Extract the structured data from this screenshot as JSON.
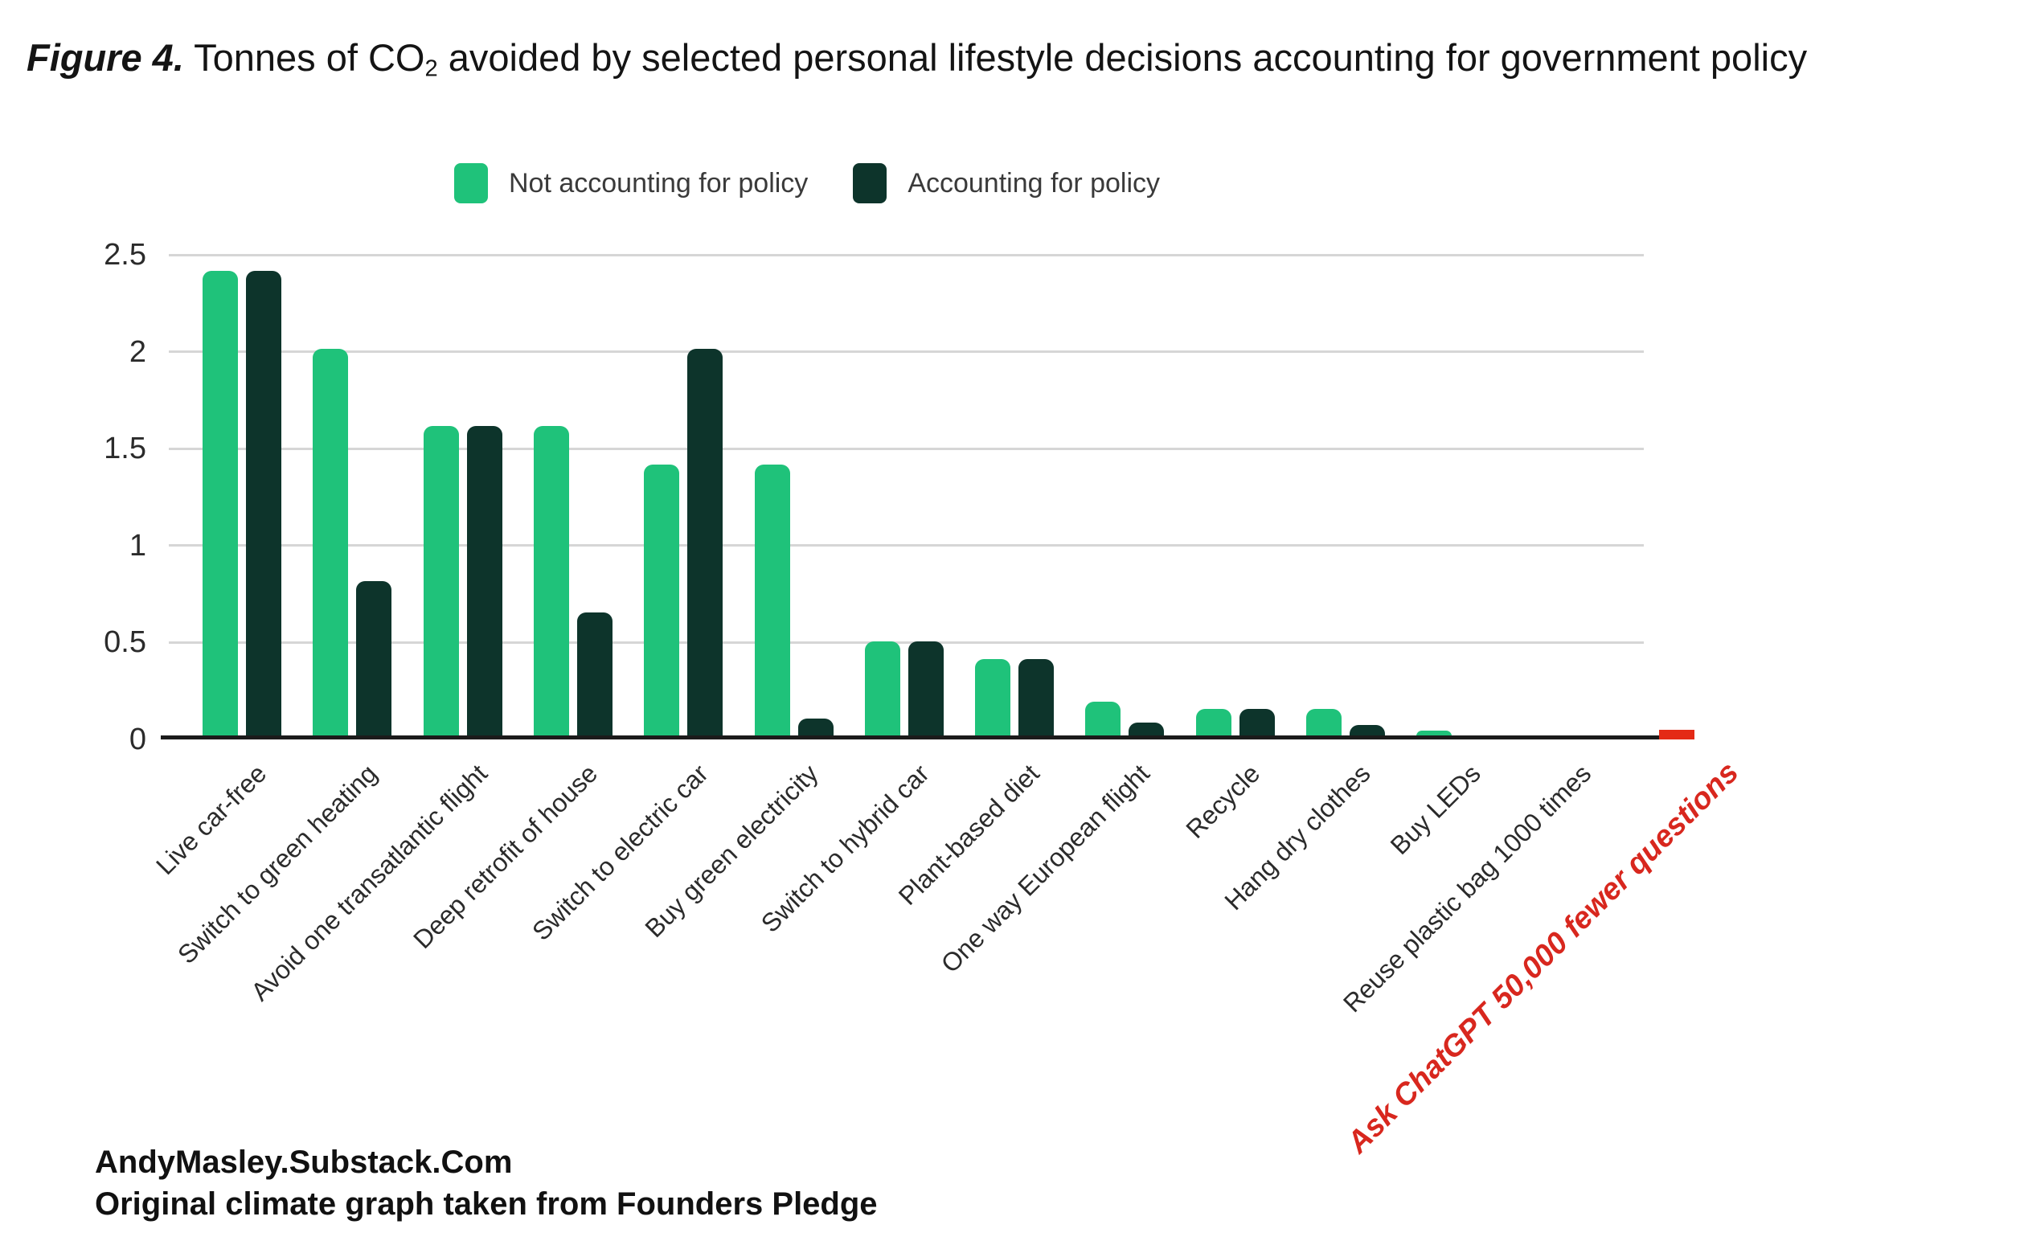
{
  "title": {
    "figure_label": "Figure 4.",
    "pre_sub": " Tonnes of CO",
    "sub": "2",
    "post_sub": " avoided by selected personal lifestyle decisions accounting for government policy"
  },
  "legend": {
    "items": [
      {
        "label": "Not accounting for policy",
        "color": "#1fc27a"
      },
      {
        "label": "Accounting for policy",
        "color": "#0d342b"
      }
    ]
  },
  "footer": {
    "line1": "AndyMasley.Substack.Com",
    "line2": "Original climate graph taken from Founders Pledge"
  },
  "chart_data": {
    "type": "bar",
    "title": "Figure 4. Tonnes of CO2 avoided by selected personal lifestyle decisions accounting for government policy",
    "categories": [
      "Live car-free",
      "Switch to green heating",
      "Avoid one transatlantic flight",
      "Deep retrofit of house",
      "Switch to electric car",
      "Buy green electricity",
      "Switch to hybrid car",
      "Plant-based diet",
      "One way European flight",
      "Recycle",
      "Hang dry clothes",
      "Buy LEDs",
      "Reuse plastic bag 1000 times",
      "Ask ChatGPT 50,000 fewer questions"
    ],
    "series": [
      {
        "name": "Not accounting for policy",
        "color": "#1fc27a",
        "values": [
          2.4,
          2.0,
          1.6,
          1.6,
          1.4,
          1.4,
          0.49,
          0.4,
          0.18,
          0.14,
          0.14,
          0.03,
          0,
          0
        ]
      },
      {
        "name": "Accounting for policy",
        "color": "#0d342b",
        "values": [
          2.4,
          0.8,
          1.6,
          0.64,
          2.0,
          0.09,
          0.49,
          0.4,
          0.07,
          0.14,
          0.06,
          0,
          0,
          0
        ]
      },
      {
        "name": "ChatGPT annotation",
        "color": "#e42a16",
        "values": [
          0,
          0,
          0,
          0,
          0,
          0,
          0,
          0,
          0,
          0,
          0,
          0,
          0,
          0.05
        ]
      }
    ],
    "xlabel": "",
    "ylabel": "",
    "ylim": [
      0,
      2.5
    ],
    "yticks": [
      0,
      0.5,
      1,
      1.5,
      2,
      2.5
    ],
    "ytick_labels": [
      "0",
      "0.5",
      "1",
      "1.5",
      "2",
      "2.5"
    ],
    "grid": "horizontal",
    "legend_position": "top",
    "highlight": {
      "category_index": 13,
      "label_color": "#d8271e"
    }
  }
}
